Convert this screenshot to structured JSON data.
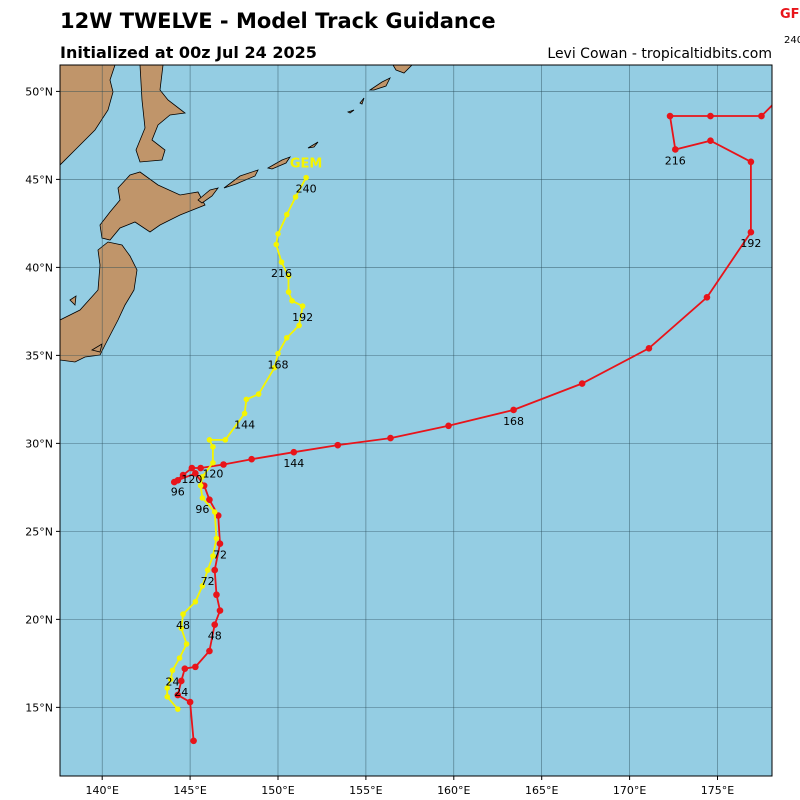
{
  "header": {
    "title": "12W TWELVE - Model Track Guidance",
    "subtitle": "Initialized at 00z Jul 24 2025",
    "credit": "Levi Cowan - tropicaltidbits.com"
  },
  "map": {
    "xlim": [
      137.6,
      178.1
    ],
    "ylim": [
      11.1,
      51.5
    ],
    "xticks": [
      {
        "value": 140,
        "label": "140°E"
      },
      {
        "value": 145,
        "label": "145°E"
      },
      {
        "value": 150,
        "label": "150°E"
      },
      {
        "value": 155,
        "label": "155°E"
      },
      {
        "value": 160,
        "label": "160°E"
      },
      {
        "value": 165,
        "label": "165°E"
      },
      {
        "value": 170,
        "label": "170°E"
      },
      {
        "value": 175,
        "label": "175°E"
      }
    ],
    "yticks": [
      {
        "value": 15,
        "label": "15°N"
      },
      {
        "value": 20,
        "label": "20°N"
      },
      {
        "value": 25,
        "label": "25°N"
      },
      {
        "value": 30,
        "label": "30°N"
      },
      {
        "value": 35,
        "label": "35°N"
      },
      {
        "value": 40,
        "label": "40°N"
      },
      {
        "value": 45,
        "label": "45°N"
      },
      {
        "value": 50,
        "label": "50°N"
      }
    ],
    "grid": true,
    "tracks": [
      {
        "name": "GF",
        "color": "#e8141a",
        "lon": [
          145.2,
          145.0,
          144.3,
          144.5,
          144.7,
          145.3,
          146.1,
          146.4,
          146.7,
          146.5,
          146.4,
          146.7,
          146.6,
          146.1,
          145.8,
          145.3,
          144.3,
          144.1,
          144.6,
          145.1,
          145.6,
          146.9,
          148.5,
          150.9,
          153.4,
          156.4,
          159.7,
          163.4,
          167.3,
          171.1,
          174.4,
          176.9,
          176.9,
          174.6,
          172.6,
          172.3,
          174.6,
          177.5,
          178.5
        ],
        "lat": [
          13.1,
          15.3,
          15.7,
          16.5,
          17.2,
          17.3,
          18.2,
          19.7,
          20.5,
          21.4,
          22.8,
          24.3,
          25.9,
          26.8,
          27.6,
          28.3,
          27.9,
          27.8,
          28.2,
          28.6,
          28.6,
          28.8,
          29.1,
          29.5,
          29.9,
          30.3,
          31.0,
          31.9,
          33.4,
          35.4,
          38.3,
          42.0,
          46.0,
          47.2,
          46.7,
          48.6,
          48.6,
          48.6,
          49.6
        ],
        "labels": [
          null,
          null,
          null,
          "24",
          null,
          null,
          null,
          "48",
          null,
          null,
          null,
          "72",
          null,
          null,
          null,
          null,
          "96",
          null,
          null,
          "120",
          null,
          null,
          null,
          "144",
          null,
          null,
          null,
          "168",
          null,
          null,
          null,
          "192",
          null,
          null,
          "216",
          null,
          null,
          null,
          "240"
        ]
      },
      {
        "name": "GEM",
        "color": "#f5f500",
        "lon": [
          144.3,
          143.7,
          143.7,
          143.9,
          144.0,
          144.4,
          144.8,
          144.5,
          144.6,
          145.3,
          145.7,
          146.0,
          146.3,
          146.5,
          146.4,
          145.7,
          145.6,
          145.7,
          146.3,
          146.3,
          146.1,
          147.0,
          148.1,
          148.2,
          148.9,
          149.8,
          150.0,
          150.5,
          151.2,
          151.4,
          150.8,
          150.6,
          150.6,
          150.2,
          149.9,
          150.0,
          150.5,
          151.0,
          151.6
        ],
        "lat": [
          14.9,
          15.6,
          16.1,
          16.6,
          17.1,
          17.8,
          18.6,
          19.5,
          20.3,
          21.0,
          21.9,
          22.8,
          23.6,
          24.6,
          26.1,
          26.9,
          27.6,
          28.1,
          28.9,
          29.8,
          30.2,
          30.2,
          31.7,
          32.5,
          32.8,
          34.3,
          35.1,
          36.0,
          36.7,
          37.8,
          38.1,
          38.6,
          39.5,
          40.3,
          41.3,
          41.9,
          43.0,
          44.0,
          45.1
        ],
        "labels": [
          null,
          null,
          null,
          null,
          "24",
          null,
          null,
          null,
          "48",
          null,
          null,
          "72",
          null,
          null,
          null,
          "96",
          null,
          null,
          "120",
          null,
          null,
          null,
          "144",
          null,
          null,
          null,
          "168",
          null,
          null,
          "192",
          null,
          null,
          null,
          "216",
          null,
          null,
          null,
          null,
          "240"
        ]
      }
    ]
  }
}
